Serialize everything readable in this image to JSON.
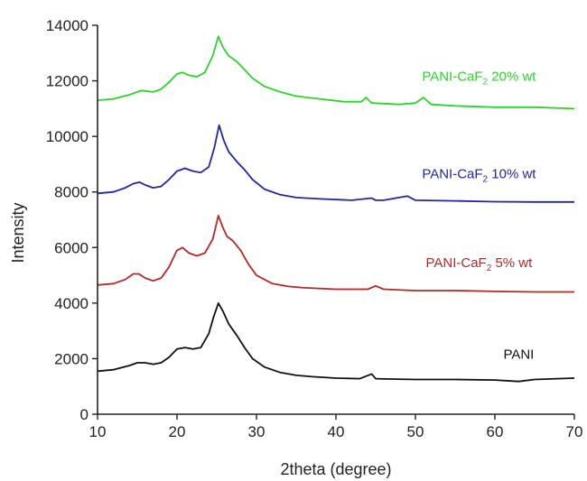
{
  "chart_data": {
    "type": "line",
    "title": "",
    "xlabel": "2theta (degree)",
    "ylabel": "Intensity",
    "xlim": [
      10,
      70
    ],
    "ylim": [
      0,
      14000
    ],
    "xticks": [
      10,
      20,
      30,
      40,
      50,
      60,
      70
    ],
    "yticks": [
      0,
      2000,
      4000,
      6000,
      8000,
      10000,
      12000,
      14000
    ],
    "grid": false,
    "legend": "labels placed next to each curve",
    "series": [
      {
        "name": "PANI",
        "label_main": "PANI",
        "label_sub": "",
        "label_tail": "",
        "label_at": [
          63,
          2000
        ],
        "color": "#111111",
        "x": [
          10,
          12,
          14,
          15,
          16,
          17,
          18,
          19,
          20,
          21,
          22,
          23,
          24,
          24.6,
          25.2,
          25.8,
          26.5,
          27.5,
          28.5,
          29.5,
          31,
          33,
          35,
          37,
          40,
          43,
          44.5,
          45,
          46,
          50,
          55,
          60,
          63,
          65,
          70
        ],
        "y": [
          1550,
          1600,
          1750,
          1850,
          1850,
          1800,
          1850,
          2050,
          2350,
          2400,
          2350,
          2400,
          2900,
          3500,
          4000,
          3700,
          3250,
          2850,
          2400,
          2000,
          1700,
          1500,
          1400,
          1350,
          1300,
          1280,
          1450,
          1280,
          1270,
          1250,
          1250,
          1230,
          1180,
          1250,
          1300
        ]
      },
      {
        "name": "PANI-CaF2 5% wt",
        "label_main": "PANI-CaF",
        "label_sub": "2",
        "label_tail": " 5% wt",
        "label_at": [
          58,
          5300
        ],
        "color": "#b02a2a",
        "x": [
          10,
          12,
          13.5,
          14.5,
          15.2,
          16,
          17,
          18,
          19,
          20,
          20.7,
          21.5,
          22.5,
          23.5,
          24.5,
          25.2,
          25.8,
          26.3,
          27,
          28,
          29,
          30,
          32,
          34,
          36,
          40,
          44,
          45,
          46,
          50,
          55,
          60,
          65,
          70
        ],
        "y": [
          4650,
          4700,
          4850,
          5050,
          5050,
          4900,
          4800,
          4900,
          5300,
          5900,
          6000,
          5800,
          5700,
          5800,
          6300,
          7150,
          6700,
          6400,
          6250,
          5900,
          5400,
          5000,
          4700,
          4600,
          4550,
          4500,
          4500,
          4620,
          4500,
          4450,
          4450,
          4420,
          4400,
          4400
        ]
      },
      {
        "name": "PANI-CaF2 10% wt",
        "label_main": "PANI-CaF",
        "label_sub": "2",
        "label_tail": " 10% wt",
        "label_at": [
          58,
          8500
        ],
        "color": "#22279a",
        "x": [
          10,
          12,
          13.5,
          14.5,
          15.3,
          16,
          17,
          18,
          19,
          20,
          21,
          22,
          23,
          24,
          24.7,
          25.3,
          25.9,
          26.5,
          27.5,
          28.5,
          29.5,
          31,
          33,
          35,
          38,
          42,
          44.5,
          45,
          46,
          49,
          50,
          55,
          60,
          65,
          70
        ],
        "y": [
          7950,
          8000,
          8150,
          8300,
          8350,
          8250,
          8150,
          8200,
          8450,
          8750,
          8850,
          8750,
          8700,
          8900,
          9600,
          10400,
          9850,
          9450,
          9100,
          8800,
          8450,
          8100,
          7900,
          7800,
          7750,
          7700,
          7780,
          7700,
          7700,
          7850,
          7700,
          7680,
          7650,
          7640,
          7640
        ]
      },
      {
        "name": "PANI-CaF2 20% wt",
        "label_main": "PANI-CaF",
        "label_sub": "2",
        "label_tail": " 20% wt",
        "label_at": [
          58,
          12000
        ],
        "color": "#2ed12e",
        "x": [
          10,
          12,
          14,
          15.5,
          17,
          18,
          19,
          20,
          20.7,
          21.5,
          22.5,
          23.5,
          24.5,
          25.2,
          25.8,
          26.5,
          27.5,
          28.5,
          29.5,
          31,
          33,
          35,
          38,
          41,
          43.2,
          43.8,
          44.5,
          46,
          48,
          50,
          51,
          52,
          55,
          60,
          65,
          70
        ],
        "y": [
          11300,
          11350,
          11500,
          11650,
          11600,
          11700,
          11950,
          12250,
          12300,
          12200,
          12150,
          12300,
          12900,
          13600,
          13200,
          12900,
          12700,
          12400,
          12100,
          11800,
          11600,
          11450,
          11350,
          11250,
          11250,
          11400,
          11200,
          11180,
          11150,
          11200,
          11400,
          11150,
          11100,
          11050,
          11050,
          11000
        ]
      }
    ]
  }
}
